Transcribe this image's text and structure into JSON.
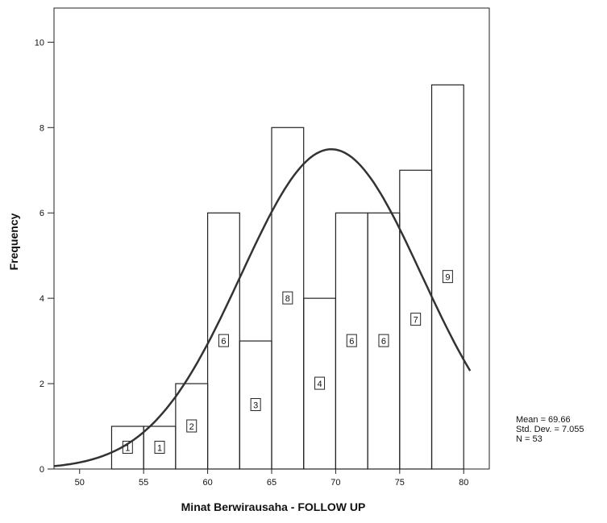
{
  "chart_data": {
    "type": "bar",
    "xlabel": "Minat Berwirausaha - FOLLOW UP",
    "ylabel": "Frequency",
    "xlim": [
      48,
      82
    ],
    "ylim": [
      0,
      10.8
    ],
    "x_ticks": [
      50,
      55,
      60,
      65,
      70,
      75,
      80
    ],
    "y_ticks": [
      0,
      2,
      4,
      6,
      8,
      10
    ],
    "bins": [
      {
        "start": 52.5,
        "end": 55,
        "value": 1,
        "label": "1"
      },
      {
        "start": 55,
        "end": 57.5,
        "value": 1,
        "label": "1"
      },
      {
        "start": 57.5,
        "end": 60,
        "value": 2,
        "label": "2"
      },
      {
        "start": 60,
        "end": 62.5,
        "value": 6,
        "label": "6"
      },
      {
        "start": 62.5,
        "end": 65,
        "value": 3,
        "label": "3"
      },
      {
        "start": 65,
        "end": 67.5,
        "value": 8,
        "label": "8"
      },
      {
        "start": 67.5,
        "end": 70,
        "value": 4,
        "label": "4"
      },
      {
        "start": 70,
        "end": 72.5,
        "value": 6,
        "label": "6"
      },
      {
        "start": 72.5,
        "end": 75,
        "value": 6,
        "label": "6"
      },
      {
        "start": 75,
        "end": 77.5,
        "value": 7,
        "label": "7"
      },
      {
        "start": 77.5,
        "end": 80,
        "value": 9,
        "label": "9"
      }
    ],
    "normal_curve": {
      "mean": 69.66,
      "std": 7.055,
      "n": 53,
      "bin_width": 2.5
    },
    "stats": {
      "mean": "Mean = 69.66",
      "std": "Std. Dev. = 7.055",
      "n": "N = 53"
    }
  }
}
